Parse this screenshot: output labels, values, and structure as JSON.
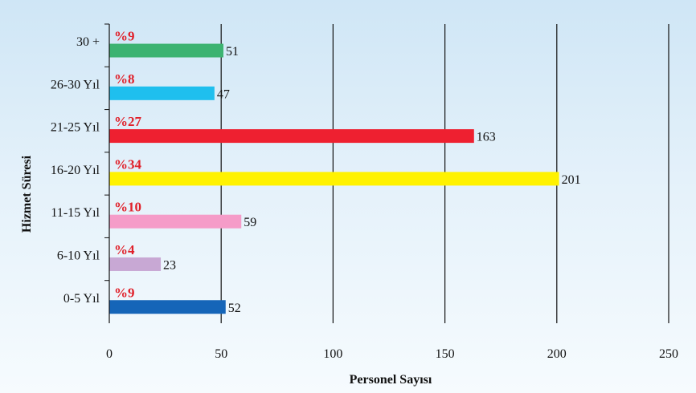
{
  "chart_data": {
    "type": "bar",
    "orientation": "horizontal",
    "categories": [
      "30 +",
      "26-30 Yıl",
      "21-25 Yıl",
      "16-20 Yıl",
      "11-15 Yıl",
      "6-10 Yıl",
      "0-5 Yıl"
    ],
    "values": [
      51,
      47,
      163,
      201,
      59,
      23,
      52
    ],
    "percent_labels": [
      "%9",
      "%8",
      "%27",
      "%34",
      "%10",
      "%4",
      "%9"
    ],
    "colors": [
      "#3cb371",
      "#1fbfee",
      "#ee2030",
      "#fff200",
      "#f59cc8",
      "#c8a8d4",
      "#1565b8"
    ],
    "xlabel": "Personel Sayısı",
    "ylabel": "Hizmet Süresi",
    "xlim": [
      0,
      250
    ],
    "xticks": [
      "0",
      "50",
      "100",
      "150",
      "200",
      "250"
    ],
    "grid": "vertical",
    "legend": "none"
  }
}
